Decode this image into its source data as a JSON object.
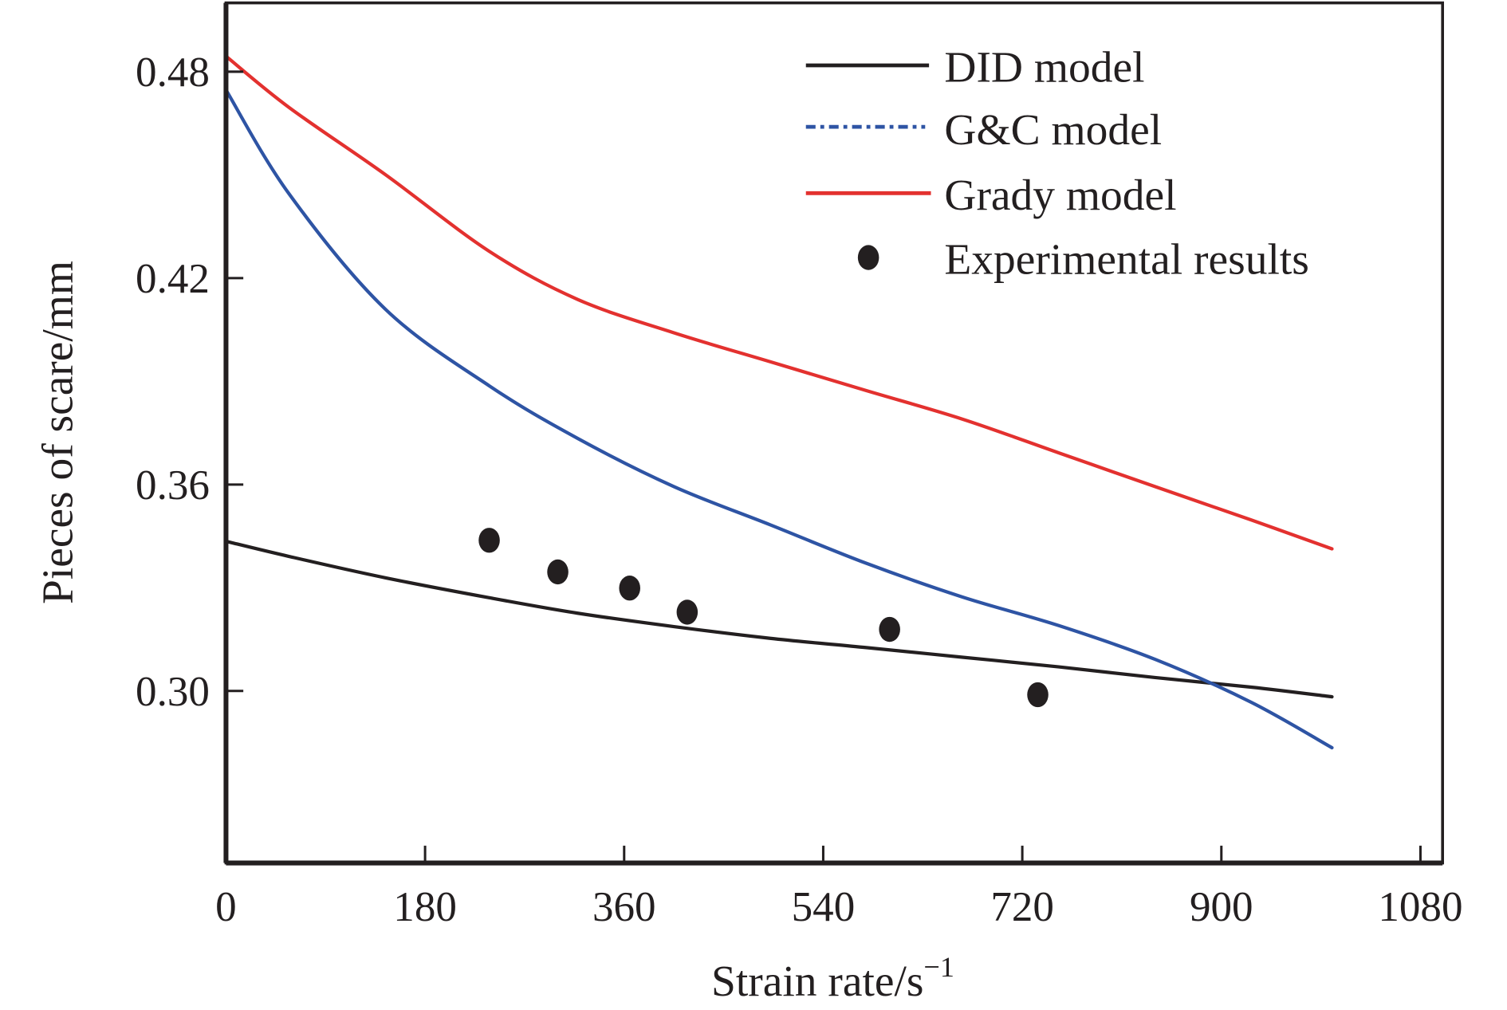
{
  "chart_data": {
    "type": "line",
    "title": "",
    "xlabel": "Strain rate/s",
    "xlabel_superscript": "−1",
    "ylabel": "Pieces of scare/mm",
    "xlim": [
      0,
      1100
    ],
    "ylim": [
      0.25,
      0.5
    ],
    "xticks": [
      0,
      180,
      360,
      540,
      720,
      900,
      1080
    ],
    "xtick_labels": [
      "0",
      "180",
      "360",
      "540",
      "720",
      "900",
      "1080"
    ],
    "yticks": [
      0.3,
      0.36,
      0.42,
      0.48
    ],
    "ytick_labels": [
      "0.30",
      "0.36",
      "0.42",
      "0.48"
    ],
    "grid": false,
    "legend_position": "top-right",
    "series": [
      {
        "name": "DID model",
        "kind": "line",
        "style": "solid",
        "color": "#231f20",
        "x": [
          0,
          57,
          144,
          238,
          318,
          405,
          492,
          579,
          666,
          753,
          840,
          927,
          1000
        ],
        "y": [
          0.3435,
          0.3391,
          0.3329,
          0.3271,
          0.3226,
          0.3187,
          0.3153,
          0.3126,
          0.3098,
          0.307,
          0.3039,
          0.3011,
          0.2983
        ]
      },
      {
        "name": "G&C model",
        "kind": "line",
        "style": "dash-dot",
        "color": "#2e54a4",
        "x": [
          0,
          57,
          144,
          238,
          318,
          405,
          492,
          579,
          666,
          753,
          840,
          927,
          1000
        ],
        "y": [
          0.4747,
          0.4445,
          0.411,
          0.3887,
          0.3734,
          0.3594,
          0.3483,
          0.3371,
          0.3273,
          0.319,
          0.3092,
          0.2967,
          0.2835
        ]
      },
      {
        "name": "Grady model",
        "kind": "line",
        "style": "solid",
        "color": "#e3312f",
        "x": [
          0,
          57,
          144,
          238,
          318,
          405,
          492,
          579,
          666,
          753,
          840,
          927,
          1000
        ],
        "y": [
          0.4845,
          0.4696,
          0.4501,
          0.4278,
          0.4138,
          0.4041,
          0.3957,
          0.3873,
          0.379,
          0.3692,
          0.3594,
          0.3497,
          0.3413
        ]
      },
      {
        "name": "Experimental results",
        "kind": "scatter",
        "marker": "circle",
        "color": "#231f20",
        "x": [
          238,
          300,
          365,
          417,
          600,
          734
        ],
        "y": [
          0.3438,
          0.3346,
          0.3299,
          0.3229,
          0.3179,
          0.2989
        ]
      }
    ]
  }
}
